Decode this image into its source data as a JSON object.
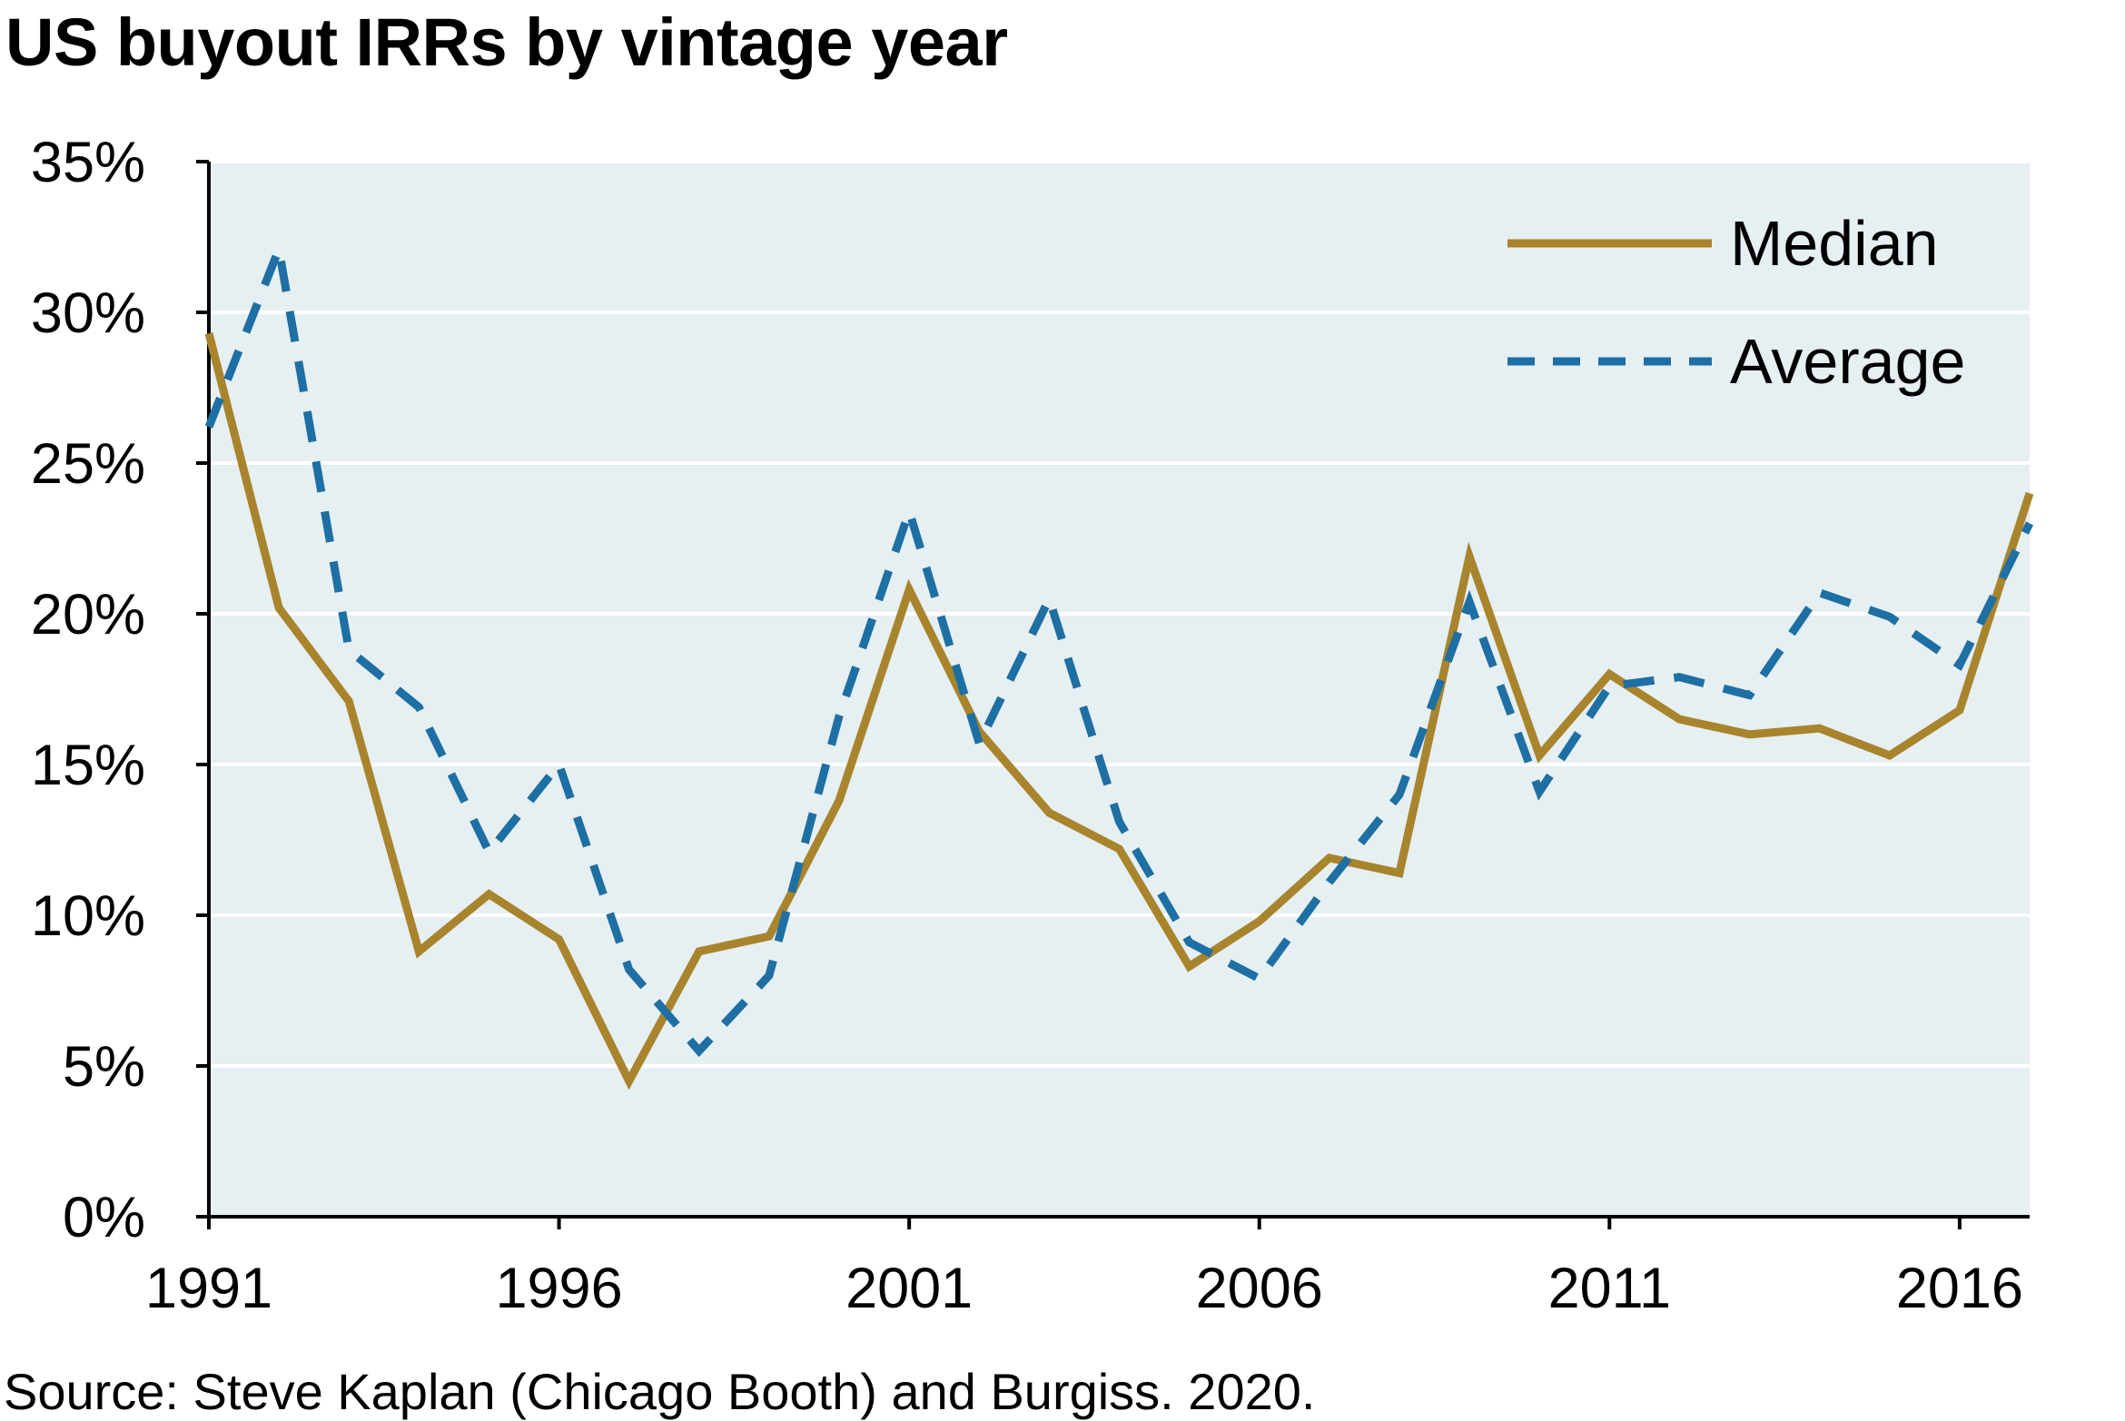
{
  "title": "US buyout IRRs by vintage year",
  "source": "Source: Steve Kaplan (Chicago Booth) and Burgiss. 2020.",
  "colors": {
    "median": "#A8842C",
    "average": "#1E6FA3",
    "plot_bg": "#E6EFF2",
    "grid": "#FFFFFF"
  },
  "chart_data": {
    "type": "line",
    "title": "US buyout IRRs by vintage year",
    "xlabel": "",
    "ylabel": "",
    "xlim": [
      1991,
      2017
    ],
    "ylim": [
      0,
      35
    ],
    "grid": true,
    "legend_position": "top-right",
    "x_ticks": [
      1991,
      1996,
      2001,
      2006,
      2011,
      2016
    ],
    "x_tick_labels": [
      "1991",
      "1996",
      "2001",
      "2006",
      "2011",
      "2016"
    ],
    "y_ticks": [
      0,
      5,
      10,
      15,
      20,
      25,
      30,
      35
    ],
    "y_tick_labels": [
      "0%",
      "5%",
      "10%",
      "15%",
      "20%",
      "25%",
      "30%",
      "35%"
    ],
    "x": [
      1991,
      1992,
      1993,
      1994,
      1995,
      1996,
      1997,
      1998,
      1999,
      2000,
      2001,
      2002,
      2003,
      2004,
      2005,
      2006,
      2007,
      2008,
      2009,
      2010,
      2011,
      2012,
      2013,
      2014,
      2015,
      2016,
      2017
    ],
    "series": [
      {
        "name": "Median",
        "style": "solid",
        "values": [
          29.3,
          20.2,
          17.1,
          8.8,
          10.7,
          9.2,
          4.5,
          8.8,
          9.3,
          13.8,
          20.8,
          16.1,
          13.4,
          12.2,
          8.3,
          9.8,
          11.9,
          11.4,
          21.9,
          15.3,
          18.0,
          16.5,
          16.0,
          16.2,
          15.3,
          16.8,
          24.0
        ]
      },
      {
        "name": "Average",
        "style": "dashed",
        "values": [
          26.2,
          32.1,
          18.8,
          16.9,
          12.1,
          15.0,
          8.2,
          5.5,
          8.0,
          16.6,
          23.4,
          15.7,
          20.5,
          13.1,
          9.1,
          7.9,
          11.1,
          14.0,
          20.4,
          14.1,
          17.6,
          17.9,
          17.3,
          20.7,
          19.9,
          18.3,
          23.0
        ]
      }
    ]
  }
}
